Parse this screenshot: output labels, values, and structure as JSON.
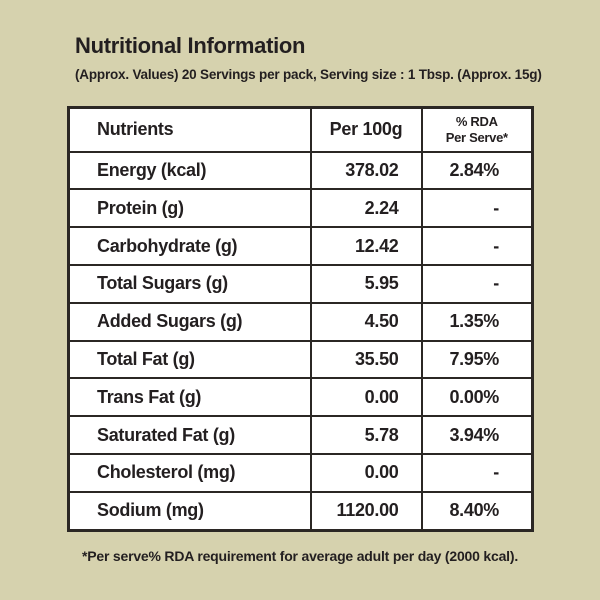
{
  "colors": {
    "page_background": "#d6d2ae",
    "table_background": "#ffffff",
    "border": "#2b2724",
    "text": "#231f20"
  },
  "header": {
    "title": "Nutritional Information",
    "subtitle": "(Approx. Values) 20 Servings per pack, Serving size : 1 Tbsp. (Approx. 15g)"
  },
  "table": {
    "columns": {
      "nutrients": "Nutrients",
      "per_100g": "Per 100g",
      "rda_line1": "% RDA",
      "rda_line2": "Per Serve*"
    },
    "rows": [
      {
        "nutrient": "Energy (kcal)",
        "per_100g": "378.02",
        "rda": "2.84%"
      },
      {
        "nutrient": "Protein (g)",
        "per_100g": "2.24",
        "rda": "-"
      },
      {
        "nutrient": "Carbohydrate (g)",
        "per_100g": "12.42",
        "rda": "-"
      },
      {
        "nutrient": "Total Sugars (g)",
        "per_100g": "5.95",
        "rda": "-"
      },
      {
        "nutrient": "Added Sugars (g)",
        "per_100g": "4.50",
        "rda": "1.35%"
      },
      {
        "nutrient": "Total Fat (g)",
        "per_100g": "35.50",
        "rda": "7.95%"
      },
      {
        "nutrient": "Trans Fat (g)",
        "per_100g": "0.00",
        "rda": "0.00%"
      },
      {
        "nutrient": "Saturated Fat (g)",
        "per_100g": "5.78",
        "rda": "3.94%"
      },
      {
        "nutrient": "Cholesterol (mg)",
        "per_100g": "0.00",
        "rda": "-"
      },
      {
        "nutrient": "Sodium (mg)",
        "per_100g": "1120.00",
        "rda": "8.40%"
      }
    ]
  },
  "footnote": "*Per serve% RDA requirement for average adult per day (2000 kcal)."
}
